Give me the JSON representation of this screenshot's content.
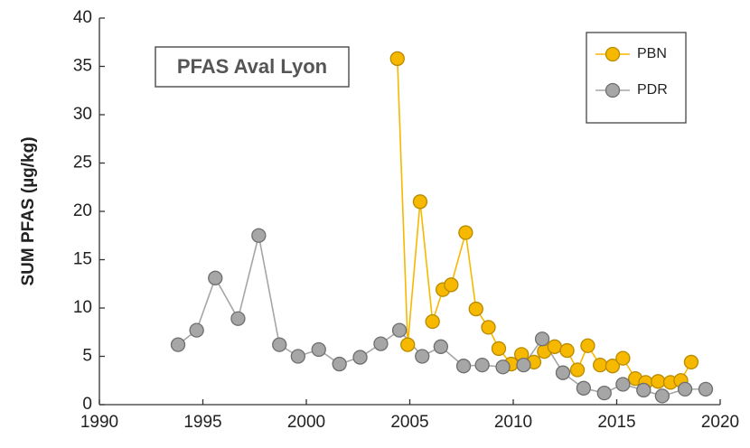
{
  "chart_data": {
    "type": "line",
    "annotation": "PFAS Aval Lyon",
    "ylabel": "SUM PFAS (µg/kg)",
    "xlim": [
      1990,
      2020
    ],
    "xticks": [
      1990,
      1995,
      2000,
      2005,
      2010,
      2015,
      2020
    ],
    "ylim": [
      0,
      40
    ],
    "yticks": [
      0,
      5,
      10,
      15,
      20,
      25,
      30,
      35,
      40
    ],
    "legend": "top right",
    "grid": false,
    "series": [
      {
        "name": "PBN",
        "color": "#f7b800",
        "edge": "#b88a00",
        "x": [
          2004.4,
          2004.9,
          2005.5,
          2006.1,
          2006.6,
          2007.0,
          2007.7,
          2008.2,
          2008.8,
          2009.3,
          2009.9,
          2010.4,
          2011.0,
          2011.5,
          2012.0,
          2012.6,
          2013.1,
          2013.6,
          2014.2,
          2014.8,
          2015.3,
          2015.9,
          2016.4,
          2017.0,
          2017.6,
          2018.1,
          2018.6
        ],
        "values": [
          35.8,
          6.2,
          21,
          8.6,
          11.9,
          12.4,
          17.8,
          9.9,
          8.0,
          5.8,
          4.2,
          5.2,
          4.4,
          5.5,
          6.0,
          5.6,
          3.6,
          6.1,
          4.1,
          4.0,
          4.8,
          2.7,
          2.3,
          2.4,
          2.3,
          2.5,
          4.4
        ]
      },
      {
        "name": "PDR",
        "color": "#a6a6a6",
        "edge": "#6e6e6e",
        "x": [
          1993.8,
          1994.7,
          1995.6,
          1996.7,
          1997.7,
          1998.7,
          1999.6,
          2000.6,
          2001.6,
          2002.6,
          2003.6,
          2004.5,
          2005.6,
          2006.5,
          2007.6,
          2008.5,
          2009.5,
          2010.5,
          2011.4,
          2012.4,
          2013.4,
          2014.4,
          2015.3,
          2016.3,
          2017.2,
          2018.3,
          2019.3
        ],
        "values": [
          6.2,
          7.7,
          13.1,
          8.9,
          17.5,
          6.2,
          5.0,
          5.7,
          4.2,
          4.9,
          6.3,
          7.7,
          5.0,
          6.0,
          4.0,
          4.1,
          3.9,
          4.1,
          6.8,
          3.3,
          1.7,
          1.2,
          2.1,
          1.5,
          0.9,
          1.6,
          1.6
        ]
      }
    ]
  }
}
